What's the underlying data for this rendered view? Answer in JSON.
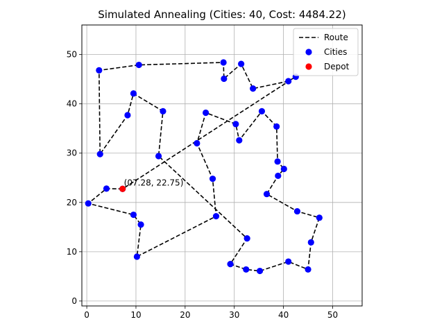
{
  "chart_data": {
    "type": "scatter",
    "title": "Simulated Annealing (Cities: 40, Cost: 4484.22)",
    "xlabel": "",
    "ylabel": "",
    "xlim": [
      -1,
      56
    ],
    "ylim": [
      -1,
      56
    ],
    "xticks": [
      0,
      10,
      20,
      30,
      40,
      50
    ],
    "yticks": [
      0,
      10,
      20,
      30,
      40,
      50
    ],
    "grid": true,
    "legend_position": "top-right",
    "legend": [
      {
        "label": "Route",
        "kind": "line",
        "color": "#000000"
      },
      {
        "label": "Cities",
        "kind": "marker",
        "color": "#0000ff"
      },
      {
        "label": "Depot",
        "kind": "marker",
        "color": "#ff0000"
      }
    ],
    "depot": {
      "x": 7.28,
      "y": 22.75,
      "label": "(07.28, 22.75)"
    },
    "cities": [
      {
        "x": 7.28,
        "y": 22.75
      },
      {
        "x": 4.0,
        "y": 22.8
      },
      {
        "x": 0.3,
        "y": 19.8
      },
      {
        "x": 9.5,
        "y": 17.5
      },
      {
        "x": 11.0,
        "y": 15.5
      },
      {
        "x": 10.2,
        "y": 9.0
      },
      {
        "x": 26.3,
        "y": 17.2
      },
      {
        "x": 25.6,
        "y": 24.8
      },
      {
        "x": 22.4,
        "y": 32.0
      },
      {
        "x": 24.2,
        "y": 38.2
      },
      {
        "x": 30.3,
        "y": 35.9
      },
      {
        "x": 31.0,
        "y": 32.6
      },
      {
        "x": 35.6,
        "y": 38.5
      },
      {
        "x": 38.6,
        "y": 35.4
      },
      {
        "x": 38.8,
        "y": 28.3
      },
      {
        "x": 40.1,
        "y": 26.8
      },
      {
        "x": 38.9,
        "y": 25.4
      },
      {
        "x": 36.6,
        "y": 21.7
      },
      {
        "x": 42.8,
        "y": 18.2
      },
      {
        "x": 47.3,
        "y": 16.9
      },
      {
        "x": 45.6,
        "y": 11.9
      },
      {
        "x": 45.0,
        "y": 6.4
      },
      {
        "x": 41.0,
        "y": 8.0
      },
      {
        "x": 35.2,
        "y": 6.1
      },
      {
        "x": 32.4,
        "y": 6.4
      },
      {
        "x": 29.2,
        "y": 7.5
      },
      {
        "x": 32.6,
        "y": 12.7
      },
      {
        "x": 14.6,
        "y": 29.4
      },
      {
        "x": 15.5,
        "y": 38.5
      },
      {
        "x": 9.5,
        "y": 42.1
      },
      {
        "x": 8.3,
        "y": 37.7
      },
      {
        "x": 2.7,
        "y": 29.8
      },
      {
        "x": 2.5,
        "y": 46.8
      },
      {
        "x": 10.6,
        "y": 47.9
      },
      {
        "x": 27.8,
        "y": 48.4
      },
      {
        "x": 27.9,
        "y": 45.1
      },
      {
        "x": 31.4,
        "y": 48.1
      },
      {
        "x": 33.8,
        "y": 43.1
      },
      {
        "x": 41.0,
        "y": 44.6
      },
      {
        "x": 42.5,
        "y": 45.5
      }
    ],
    "route": [
      [
        7.28,
        22.75
      ],
      [
        4.0,
        22.8
      ],
      [
        0.3,
        19.8
      ],
      [
        9.5,
        17.5
      ],
      [
        11.0,
        15.5
      ],
      [
        10.2,
        9.0
      ],
      [
        26.3,
        17.2
      ],
      [
        25.6,
        24.8
      ],
      [
        22.4,
        32.0
      ],
      [
        24.2,
        38.2
      ],
      [
        30.3,
        35.9
      ],
      [
        31.0,
        32.6
      ],
      [
        35.6,
        38.5
      ],
      [
        38.6,
        35.4
      ],
      [
        38.8,
        28.3
      ],
      [
        40.1,
        26.8
      ],
      [
        38.9,
        25.4
      ],
      [
        36.6,
        21.7
      ],
      [
        42.8,
        18.2
      ],
      [
        47.3,
        16.9
      ],
      [
        45.6,
        11.9
      ],
      [
        45.0,
        6.4
      ],
      [
        41.0,
        8.0
      ],
      [
        35.2,
        6.1
      ],
      [
        32.4,
        6.4
      ],
      [
        29.2,
        7.5
      ],
      [
        32.6,
        12.7
      ],
      [
        14.6,
        29.4
      ],
      [
        15.5,
        38.5
      ],
      [
        9.5,
        42.1
      ],
      [
        8.3,
        37.7
      ],
      [
        2.7,
        29.8
      ],
      [
        2.5,
        46.8
      ],
      [
        10.6,
        47.9
      ],
      [
        27.8,
        48.4
      ],
      [
        27.9,
        45.1
      ],
      [
        31.4,
        48.1
      ],
      [
        33.8,
        43.1
      ],
      [
        41.0,
        44.6
      ],
      [
        42.5,
        45.5
      ],
      [
        7.28,
        22.75
      ]
    ]
  }
}
